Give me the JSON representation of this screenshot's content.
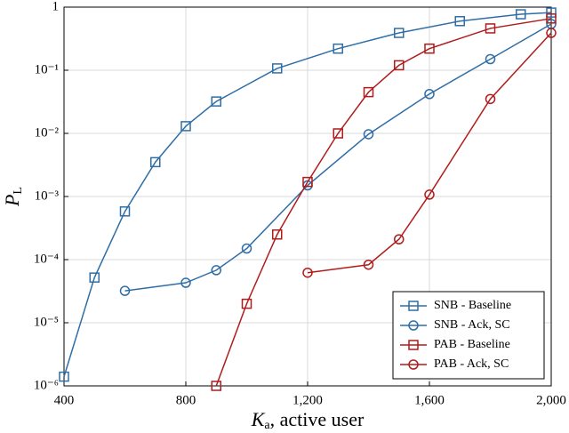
{
  "chart_data": {
    "type": "line",
    "x_label": {
      "symbol": "K",
      "subscript": "a",
      "text": ", active user"
    },
    "y_label": {
      "symbol": "P",
      "subscript": "L"
    },
    "log_y": true,
    "grid": true,
    "legend_position": "lower right",
    "xlim": [
      400,
      2000
    ],
    "xticks": [
      400,
      800,
      {
        "value": 1200,
        "label": "1,200"
      },
      {
        "value": 1600,
        "label": "1,600"
      },
      {
        "value": 2000,
        "label": "2,000"
      }
    ],
    "ylim": [
      1e-06,
      1
    ],
    "yticks": [
      {
        "value": 1e-06,
        "label": "10⁻⁶"
      },
      {
        "value": 1e-05,
        "label": "10⁻⁵"
      },
      {
        "value": 0.0001,
        "label": "10⁻⁴"
      },
      {
        "value": 0.001,
        "label": "10⁻³"
      },
      {
        "value": 0.01,
        "label": "10⁻²"
      },
      {
        "value": 0.1,
        "label": "10⁻¹"
      },
      1
    ],
    "series": [
      {
        "name": "SNB - Baseline",
        "color": "#2f6ea6",
        "marker": "square",
        "x": [
          400,
          500,
          600,
          700,
          800,
          900,
          1100,
          1300,
          1500,
          1700,
          1900,
          2000
        ],
        "values": [
          1.4e-06,
          5.2e-05,
          0.00058,
          0.0035,
          0.013,
          0.032,
          0.107,
          0.22,
          0.39,
          0.6,
          0.77,
          0.82
        ]
      },
      {
        "name": "SNB - Ack, SC",
        "color": "#2f6ea6",
        "marker": "circle",
        "x": [
          600,
          800,
          900,
          1000,
          1200,
          1400,
          1600,
          1800,
          2000
        ],
        "values": [
          3.2e-05,
          4.3e-05,
          6.8e-05,
          0.00015,
          0.0015,
          0.0097,
          0.042,
          0.15,
          0.54
        ]
      },
      {
        "name": "PAB - Baseline",
        "color": "#b01c1c",
        "marker": "square",
        "x": [
          900,
          1000,
          1100,
          1200,
          1300,
          1400,
          1500,
          1600,
          1800,
          2000
        ],
        "values": [
          1e-06,
          2e-05,
          0.00025,
          0.0017,
          0.01,
          0.045,
          0.12,
          0.22,
          0.46,
          0.66
        ]
      },
      {
        "name": "PAB - Ack, SC",
        "color": "#b01c1c",
        "marker": "circle",
        "x": [
          1200,
          1400,
          1500,
          1600,
          1800,
          2000
        ],
        "values": [
          6.2e-05,
          8.3e-05,
          0.00021,
          0.00107,
          0.035,
          0.39
        ]
      }
    ]
  }
}
